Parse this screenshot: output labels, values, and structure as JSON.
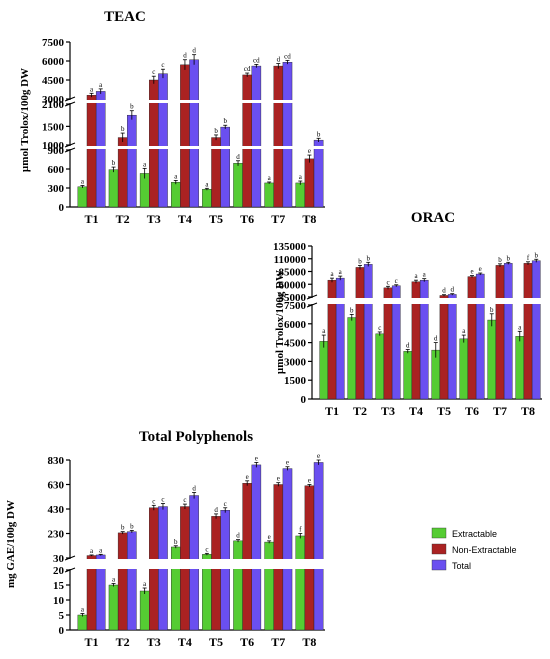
{
  "colors": {
    "extractable": "#55cc33",
    "non_extractable": "#aa2222",
    "total": "#6a4ff0"
  },
  "legend": {
    "items": [
      "Extractable",
      "Non-Extractable",
      "Total"
    ]
  },
  "chart_data": [
    {
      "type": "bar",
      "title": "TEAC",
      "ylabel": "µmol Trolox/100g DW",
      "categories": [
        "T1",
        "T2",
        "T3",
        "T4",
        "T5",
        "T6",
        "T7",
        "T8"
      ],
      "segments": [
        {
          "ylim": [
            0,
            900
          ],
          "ticks": [
            0,
            300,
            600,
            900
          ]
        },
        {
          "ylim": [
            1000,
            2100
          ],
          "ticks": [
            1000,
            1500,
            2100
          ]
        },
        {
          "ylim": [
            3000,
            7500
          ],
          "ticks": [
            3000,
            4500,
            6000,
            7500
          ]
        }
      ],
      "series": [
        {
          "name": "Extractable",
          "values": [
            320,
            590,
            530,
            390,
            280,
            690,
            380,
            380
          ],
          "errors": [
            20,
            40,
            80,
            30,
            15,
            40,
            15,
            30
          ],
          "letters": [
            "a",
            "b",
            "a",
            "a",
            "a",
            "d",
            "a",
            "a"
          ]
        },
        {
          "name": "Non-Extractable",
          "values": [
            3300,
            1200,
            4500,
            5700,
            1200,
            4900,
            5600,
            760
          ],
          "errors": [
            150,
            120,
            300,
            400,
            70,
            150,
            200,
            60
          ],
          "letters": [
            "a",
            "b",
            "c",
            "d",
            "b",
            "cd",
            "d",
            "e"
          ]
        },
        {
          "name": "Total",
          "values": [
            3600,
            1800,
            5000,
            6100,
            1480,
            5600,
            5900,
            1130
          ],
          "errors": [
            200,
            120,
            350,
            400,
            50,
            130,
            150,
            50
          ],
          "letters": [
            "a",
            "b",
            "c",
            "d",
            "b",
            "cd",
            "cd",
            "b"
          ]
        }
      ]
    },
    {
      "type": "bar",
      "title": "ORAC",
      "ylabel": "µmol Trolox/100g DW",
      "categories": [
        "T1",
        "T2",
        "T3",
        "T4",
        "T5",
        "T6",
        "T7",
        "T8"
      ],
      "segments": [
        {
          "ylim": [
            0,
            7500
          ],
          "ticks": [
            0,
            1500,
            3000,
            4500,
            6000,
            7500
          ]
        },
        {
          "ylim": [
            35000,
            135000
          ],
          "ticks": [
            35000,
            60000,
            85000,
            110000,
            135000
          ]
        }
      ],
      "series": [
        {
          "name": "Extractable",
          "values": [
            4600,
            6500,
            5200,
            3800,
            3900,
            4800,
            6300,
            5000
          ],
          "errors": [
            500,
            250,
            150,
            150,
            600,
            300,
            500,
            400
          ],
          "letters": [
            "a",
            "b",
            "c",
            "d",
            "d",
            "a",
            "b",
            "a"
          ]
        },
        {
          "name": "Non-Extractable",
          "values": [
            68000,
            93000,
            53000,
            65000,
            38000,
            75000,
            97000,
            101000
          ],
          "errors": [
            4000,
            4000,
            3000,
            3000,
            1500,
            2000,
            3000,
            3000
          ],
          "letters": [
            "a",
            "b",
            "c",
            "a",
            "d",
            "e",
            "b",
            "f"
          ]
        },
        {
          "name": "Total",
          "values": [
            72000,
            99000,
            57000,
            68000,
            40000,
            80000,
            101000,
            106000
          ],
          "errors": [
            4000,
            4000,
            2000,
            3000,
            1500,
            2000,
            2000,
            3000
          ],
          "letters": [
            "a",
            "b",
            "c",
            "a",
            "d",
            "e",
            "b",
            "b"
          ]
        }
      ]
    },
    {
      "type": "bar",
      "title": "Total Polyphenols",
      "ylabel": "mg GAE/100g DW",
      "categories": [
        "T1",
        "T2",
        "T3",
        "T4",
        "T5",
        "T6",
        "T7",
        "T8"
      ],
      "segments": [
        {
          "ylim": [
            0,
            20
          ],
          "ticks": [
            0,
            5,
            10,
            15,
            20
          ]
        },
        {
          "ylim": [
            30,
            830
          ],
          "ticks": [
            30,
            230,
            430,
            630,
            830
          ]
        }
      ],
      "series": [
        {
          "name": "Extractable",
          "values": [
            5,
            15,
            13,
            120,
            60,
            170,
            160,
            210
          ],
          "errors": [
            0.5,
            0.5,
            1,
            10,
            8,
            10,
            10,
            20
          ],
          "letters": [
            "a",
            "a",
            "a",
            "b",
            "c",
            "d",
            "e",
            "f"
          ]
        },
        {
          "name": "Non-Extractable",
          "values": [
            50,
            235,
            440,
            450,
            370,
            640,
            630,
            620
          ],
          "errors": [
            5,
            10,
            20,
            20,
            20,
            20,
            15,
            10
          ],
          "letters": [
            "a",
            "b",
            "c",
            "c",
            "d",
            "e",
            "e",
            "e"
          ]
        },
        {
          "name": "Total",
          "values": [
            55,
            245,
            450,
            540,
            420,
            790,
            760,
            810
          ],
          "errors": [
            5,
            10,
            25,
            25,
            20,
            20,
            15,
            20
          ],
          "letters": [
            "a",
            "b",
            "c",
            "d",
            "c",
            "e",
            "e",
            "e"
          ]
        }
      ]
    }
  ]
}
